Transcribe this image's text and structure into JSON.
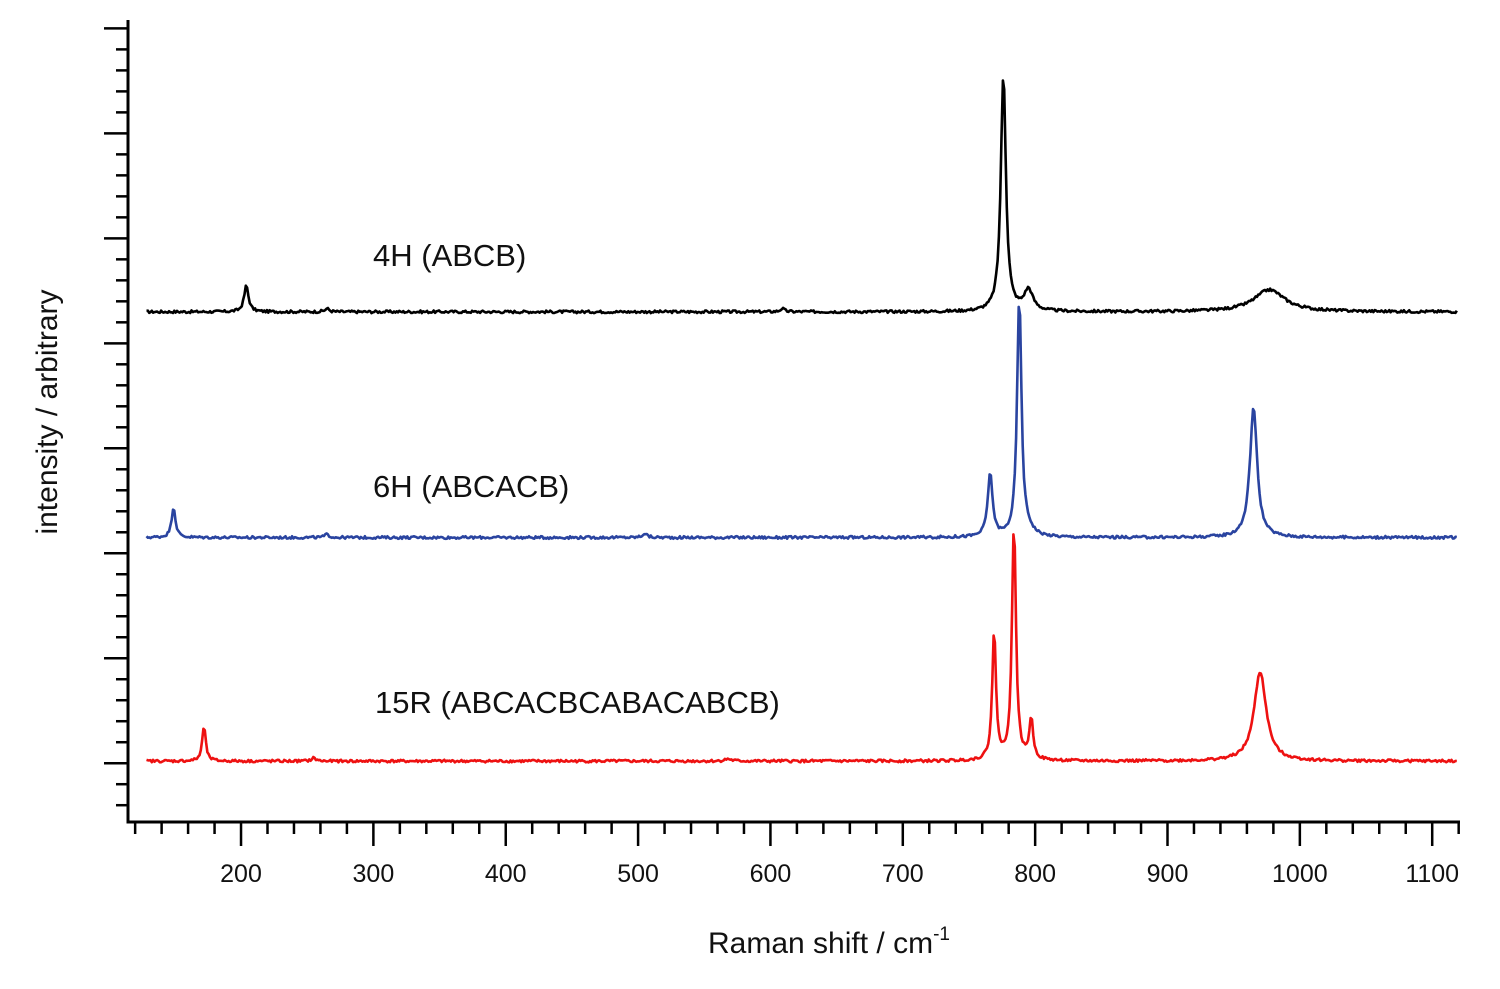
{
  "chart_data": {
    "type": "line",
    "title": "",
    "xlabel": "Raman shift / cm",
    "xlabel_superscript": "-1",
    "ylabel": "intensity / arbitrary",
    "xlim": [
      114.6,
      1121
    ],
    "ylim": [
      -0.56,
      7.08
    ],
    "x_ticks": [
      200,
      300,
      400,
      500,
      600,
      700,
      800,
      900,
      1000,
      1100
    ],
    "x_minor_step": 20,
    "y_tick_labels": false,
    "y_major_step": 1,
    "y_minor_step": 0.2,
    "grid": false,
    "legend": "none (inline series labels)",
    "series": [
      {
        "name": "4H (ABCB)",
        "color": "#000000",
        "baseline": 4.3,
        "peaks": [
          {
            "x": 204,
            "height": 0.25,
            "hwhm": 2.0
          },
          {
            "x": 265,
            "height": 0.03,
            "hwhm": 2.0
          },
          {
            "x": 609,
            "height": 0.03,
            "hwhm": 2.0
          },
          {
            "x": 776,
            "height": 2.26,
            "hwhm": 2.3
          },
          {
            "x": 795,
            "height": 0.2,
            "hwhm": 4.0
          },
          {
            "x": 977,
            "height": 0.21,
            "hwhm": 14.0
          }
        ]
      },
      {
        "name": "6H (ABCACB)",
        "color": "#2a44a0",
        "baseline": 2.15,
        "peaks": [
          {
            "x": 149,
            "height": 0.29,
            "hwhm": 1.8
          },
          {
            "x": 265,
            "height": 0.03,
            "hwhm": 2.0
          },
          {
            "x": 505,
            "height": 0.04,
            "hwhm": 2.0
          },
          {
            "x": 766,
            "height": 0.6,
            "hwhm": 2.2
          },
          {
            "x": 788,
            "height": 2.27,
            "hwhm": 2.0
          },
          {
            "x": 795,
            "height": 0.05,
            "hwhm": 5.0
          },
          {
            "x": 965,
            "height": 1.24,
            "hwhm": 3.3
          }
        ]
      },
      {
        "name": "15R (ABCACBCABACABCB)",
        "color": "#ee1111",
        "baseline": 0.02,
        "peaks": [
          {
            "x": 172,
            "height": 0.33,
            "hwhm": 1.6
          },
          {
            "x": 255,
            "height": 0.03,
            "hwhm": 2.0
          },
          {
            "x": 568,
            "height": 0.02,
            "hwhm": 3.0
          },
          {
            "x": 769,
            "height": 1.22,
            "hwhm": 1.7
          },
          {
            "x": 784,
            "height": 2.25,
            "hwhm": 1.8
          },
          {
            "x": 797,
            "height": 0.38,
            "hwhm": 1.8
          },
          {
            "x": 970,
            "height": 0.85,
            "hwhm": 5.5
          }
        ]
      }
    ]
  }
}
